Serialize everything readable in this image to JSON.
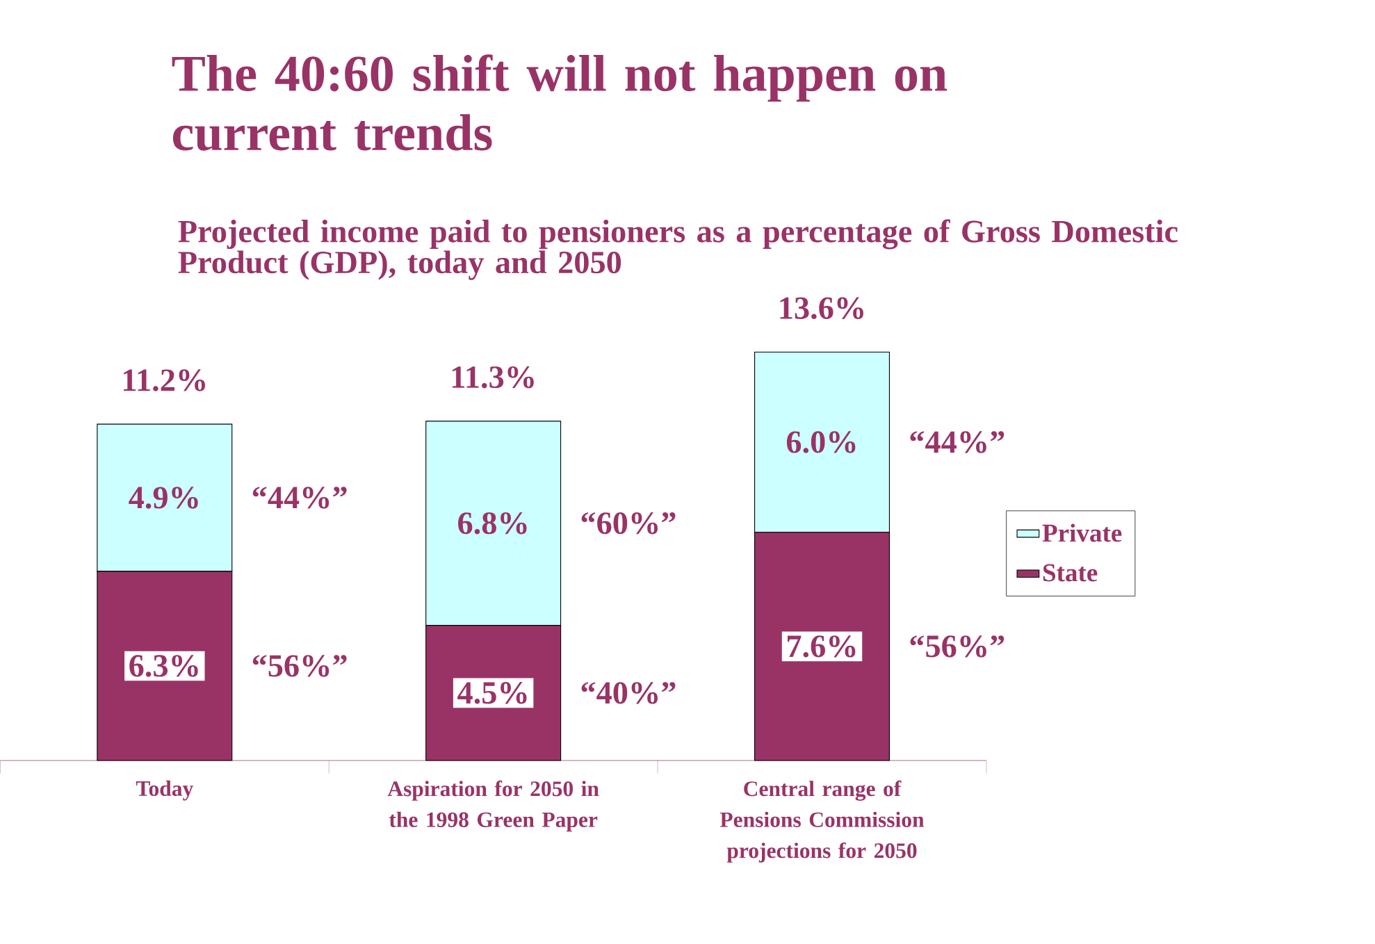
{
  "chart_data": {
    "type": "bar",
    "stacked": true,
    "title": "The 40:60 shift will not happen on current trends",
    "subtitle": "Projected income paid to pensioners as a percentage of Gross Domestic Product (GDP), today and 2050",
    "categories": [
      "Today",
      "Aspiration for 2050 in the 1998 Green Paper",
      "Central range of Pensions Commission projections for 2050"
    ],
    "series": [
      {
        "name": "State",
        "color": "#993366",
        "values": [
          6.3,
          4.5,
          7.6
        ],
        "value_labels": [
          "6.3%",
          "4.5%",
          "7.6%"
        ]
      },
      {
        "name": "Private",
        "color": "#ccffff",
        "values": [
          4.9,
          6.8,
          6.0
        ],
        "value_labels": [
          "4.9%",
          "6.8%",
          "6.0%"
        ]
      }
    ],
    "totals": [
      "11.2%",
      "11.3%",
      "13.6%"
    ],
    "annotations": [
      "“44%”",
      "“56%”",
      "“60%”",
      "“40%”",
      "“44%”",
      "“56%”"
    ],
    "legend": "right"
  }
}
